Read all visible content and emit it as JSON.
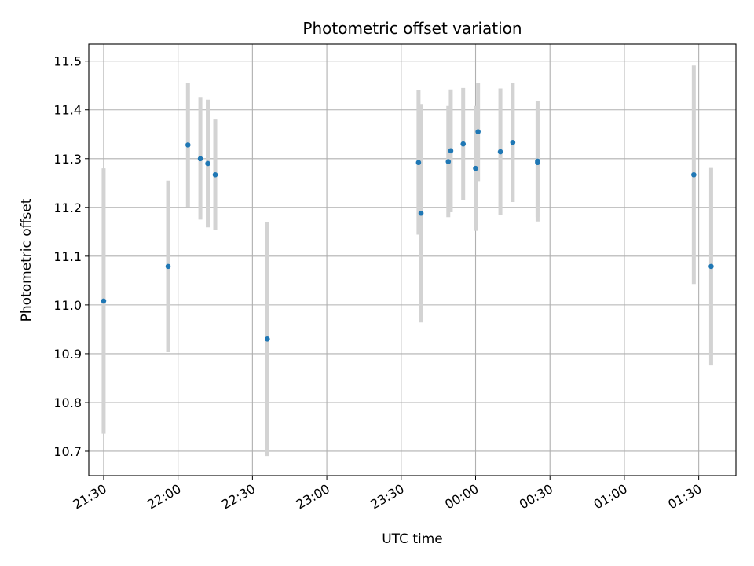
{
  "chart_data": {
    "type": "scatter",
    "title": "Photometric offset variation",
    "xlabel": "UTC time",
    "ylabel": "Photometric offset",
    "grid": true,
    "x_ticks": [
      "21:30",
      "22:00",
      "22:30",
      "23:00",
      "23:30",
      "00:00",
      "00:30",
      "01:00",
      "01:30"
    ],
    "y_ticks": [
      "10.7",
      "10.8",
      "10.9",
      "11.0",
      "11.1",
      "11.2",
      "11.3",
      "11.4",
      "11.5"
    ],
    "xlim": [
      "21:24",
      "01:45"
    ],
    "ylim": [
      10.65,
      11.535
    ],
    "colors": {
      "points": "#1f77b4",
      "errorbars": "#d3d3d3",
      "grid": "#b0b0b0"
    },
    "points": [
      {
        "t": "21:30",
        "y": 11.008,
        "err": 0.272
      },
      {
        "t": "21:56",
        "y": 11.079,
        "err": 0.176
      },
      {
        "t": "22:04",
        "y": 11.328,
        "err": 0.127
      },
      {
        "t": "22:09",
        "y": 11.3,
        "err": 0.125
      },
      {
        "t": "22:12",
        "y": 11.29,
        "err": 0.131
      },
      {
        "t": "22:15",
        "y": 11.267,
        "err": 0.113
      },
      {
        "t": "22:36",
        "y": 10.93,
        "err": 0.24
      },
      {
        "t": "23:37",
        "y": 11.292,
        "err": 0.148
      },
      {
        "t": "23:38",
        "y": 11.188,
        "err": 0.224
      },
      {
        "t": "23:49",
        "y": 11.294,
        "err": 0.114
      },
      {
        "t": "23:50",
        "y": 11.316,
        "err": 0.126
      },
      {
        "t": "23:55",
        "y": 11.33,
        "err": 0.115
      },
      {
        "t": "00:00",
        "y": 11.28,
        "err": 0.128
      },
      {
        "t": "00:01",
        "y": 11.355,
        "err": 0.101
      },
      {
        "t": "00:10",
        "y": 11.314,
        "err": 0.13
      },
      {
        "t": "00:15",
        "y": 11.333,
        "err": 0.122
      },
      {
        "t": "00:25",
        "y": 11.292,
        "err": 0.112
      },
      {
        "t": "00:25",
        "y": 11.295,
        "err": 0.124
      },
      {
        "t": "01:28",
        "y": 11.267,
        "err": 0.224
      },
      {
        "t": "01:35",
        "y": 11.079,
        "err": 0.202
      }
    ]
  }
}
